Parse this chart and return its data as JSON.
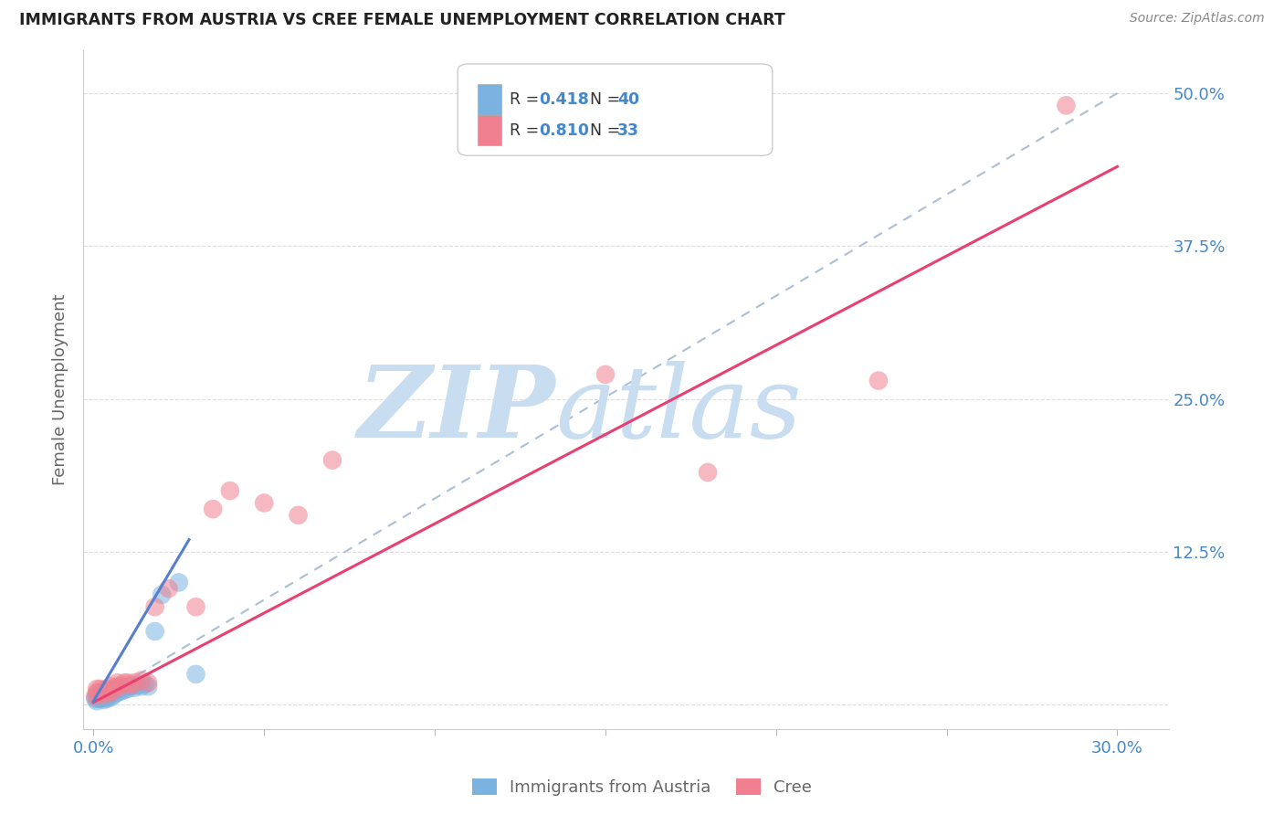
{
  "title": "IMMIGRANTS FROM AUSTRIA VS CREE FEMALE UNEMPLOYMENT CORRELATION CHART",
  "source": "Source: ZipAtlas.com",
  "ylabel": "Female Unemployment",
  "x_ticks": [
    0.0,
    0.05,
    0.1,
    0.15,
    0.2,
    0.25,
    0.3
  ],
  "y_ticks": [
    0.0,
    0.125,
    0.25,
    0.375,
    0.5
  ],
  "y_tick_labels": [
    "",
    "12.5%",
    "25.0%",
    "37.5%",
    "50.0%"
  ],
  "xlim": [
    -0.003,
    0.315
  ],
  "ylim": [
    -0.02,
    0.535
  ],
  "austria_scatter_x": [
    0.0005,
    0.001,
    0.001,
    0.0015,
    0.002,
    0.002,
    0.0025,
    0.003,
    0.003,
    0.003,
    0.003,
    0.0035,
    0.004,
    0.004,
    0.004,
    0.004,
    0.0045,
    0.005,
    0.005,
    0.005,
    0.006,
    0.006,
    0.006,
    0.007,
    0.007,
    0.008,
    0.008,
    0.009,
    0.009,
    0.01,
    0.011,
    0.012,
    0.013,
    0.014,
    0.015,
    0.016,
    0.018,
    0.02,
    0.025,
    0.03
  ],
  "austria_scatter_y": [
    0.005,
    0.003,
    0.007,
    0.005,
    0.005,
    0.008,
    0.006,
    0.004,
    0.006,
    0.008,
    0.01,
    0.006,
    0.005,
    0.007,
    0.009,
    0.011,
    0.008,
    0.006,
    0.009,
    0.011,
    0.008,
    0.011,
    0.013,
    0.01,
    0.013,
    0.011,
    0.014,
    0.012,
    0.015,
    0.013,
    0.015,
    0.014,
    0.016,
    0.015,
    0.017,
    0.015,
    0.06,
    0.09,
    0.1,
    0.025
  ],
  "cree_scatter_x": [
    0.0005,
    0.001,
    0.001,
    0.002,
    0.002,
    0.003,
    0.003,
    0.004,
    0.004,
    0.005,
    0.005,
    0.006,
    0.007,
    0.007,
    0.008,
    0.009,
    0.01,
    0.011,
    0.012,
    0.014,
    0.016,
    0.018,
    0.022,
    0.03,
    0.035,
    0.04,
    0.05,
    0.06,
    0.07,
    0.15,
    0.18,
    0.23,
    0.285
  ],
  "cree_scatter_y": [
    0.007,
    0.01,
    0.013,
    0.01,
    0.013,
    0.008,
    0.012,
    0.01,
    0.013,
    0.01,
    0.015,
    0.013,
    0.015,
    0.018,
    0.015,
    0.018,
    0.018,
    0.016,
    0.018,
    0.02,
    0.018,
    0.08,
    0.095,
    0.08,
    0.16,
    0.175,
    0.165,
    0.155,
    0.2,
    0.27,
    0.19,
    0.265,
    0.49
  ],
  "austria_line_x": [
    0.0,
    0.028
  ],
  "austria_line_y": [
    0.003,
    0.135
  ],
  "cree_line_x": [
    0.0,
    0.3
  ],
  "cree_line_y": [
    0.002,
    0.44
  ],
  "dashed_line_x": [
    0.0,
    0.3
  ],
  "dashed_line_y": [
    0.003,
    0.5
  ],
  "austria_color": "#7ab3e0",
  "cree_color": "#f08090",
  "austria_line_color": "#5580d0",
  "cree_line_color": "#e84070",
  "dashed_line_color": "#aabfd8",
  "background_color": "#ffffff",
  "grid_color": "#dddddd",
  "watermark_zip_color": "#c8ddf0",
  "watermark_atlas_color": "#c8ddf0",
  "title_color": "#222222",
  "axis_label_color": "#666666",
  "tick_label_color": "#4488cc",
  "source_color": "#888888",
  "legend_border_color": "#cccccc",
  "legend_R_color": "#333333",
  "legend_val_color": "#4488cc"
}
